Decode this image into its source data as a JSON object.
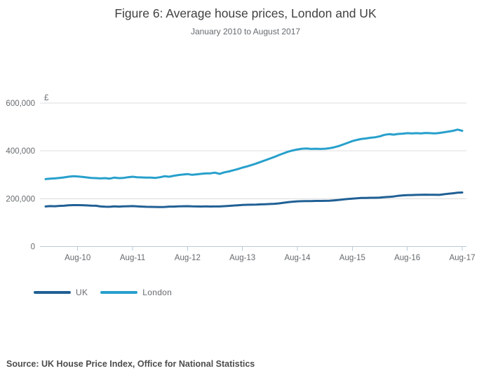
{
  "header": {
    "title": "Figure 6: Average house prices, London and UK",
    "subtitle": "January 2010 to August 2017"
  },
  "chart_data": {
    "type": "line",
    "title": "Figure 6: Average house prices, London and UK",
    "subtitle": "January 2010 to August 2017",
    "unit_label": "£",
    "x_start": "2010-01",
    "x_end": "2017-08",
    "x_tick_labels": [
      "Aug-10",
      "Aug-11",
      "Aug-12",
      "Aug-13",
      "Aug-14",
      "Aug-15",
      "Aug-16",
      "Aug-17"
    ],
    "y_ticks": [
      0,
      200000,
      400000,
      600000
    ],
    "y_tick_labels": [
      "0",
      "200,000",
      "400,000",
      "600,000"
    ],
    "ylim": [
      0,
      600000
    ],
    "grid": "horizontal",
    "legend_position": "bottom-left",
    "axis_color": "#b9cbd8",
    "gridline_color": "#dcdcdc",
    "label_color": "#666a6e",
    "series": [
      {
        "name": "UK",
        "color": "#206095",
        "values": [
          167500,
          169000,
          168400,
          170000,
          170500,
          172400,
          173200,
          173100,
          172900,
          172000,
          170800,
          170400,
          167600,
          166400,
          166200,
          167900,
          166900,
          168000,
          168300,
          168900,
          167800,
          167000,
          166200,
          165700,
          165600,
          165000,
          165600,
          166900,
          167000,
          168100,
          168300,
          168600,
          167700,
          167600,
          167300,
          167900,
          167100,
          167500,
          167600,
          168600,
          169800,
          171200,
          172600,
          174000,
          174500,
          174900,
          175200,
          176200,
          176800,
          177900,
          178700,
          180500,
          183000,
          185500,
          187400,
          189000,
          189500,
          189800,
          189900,
          190700,
          190700,
          191000,
          191500,
          193100,
          194800,
          197000,
          198700,
          200100,
          201500,
          202900,
          203300,
          204000,
          203800,
          204900,
          206500,
          207800,
          209100,
          212100,
          213900,
          215100,
          215500,
          216000,
          216200,
          216800,
          216500,
          216600,
          216000,
          218600,
          220700,
          222700,
          225000,
          225900
        ]
      },
      {
        "name": "London",
        "color": "#27A0CC",
        "values": [
          282000,
          284000,
          285000,
          287000,
          289000,
          292000,
          294000,
          293000,
          291000,
          289000,
          287000,
          286000,
          285000,
          286000,
          284000,
          288000,
          286000,
          287000,
          290000,
          292000,
          290000,
          289000,
          288000,
          288000,
          287000,
          290000,
          294000,
          292000,
          296000,
          299000,
          301000,
          303000,
          300000,
          302000,
          304000,
          306000,
          306000,
          309000,
          304000,
          310000,
          314000,
          319000,
          324000,
          330000,
          335000,
          341000,
          347000,
          354000,
          361000,
          368000,
          375000,
          383000,
          390000,
          397000,
          402000,
          406000,
          409000,
          410000,
          408000,
          409000,
          408000,
          409000,
          411000,
          415000,
          420000,
          427000,
          434000,
          441000,
          446000,
          450000,
          452000,
          455000,
          457000,
          461000,
          467000,
          470000,
          468000,
          471000,
          472000,
          474000,
          473000,
          474000,
          473000,
          475000,
          474000,
          473000,
          475000,
          478000,
          481000,
          484000,
          489000,
          484000
        ]
      }
    ]
  },
  "legend": {
    "items": [
      {
        "label": "UK",
        "color": "#206095"
      },
      {
        "label": "London",
        "color": "#27A0CC"
      }
    ]
  },
  "source": {
    "text": "Source: UK House Price Index, Office for National Statistics"
  }
}
